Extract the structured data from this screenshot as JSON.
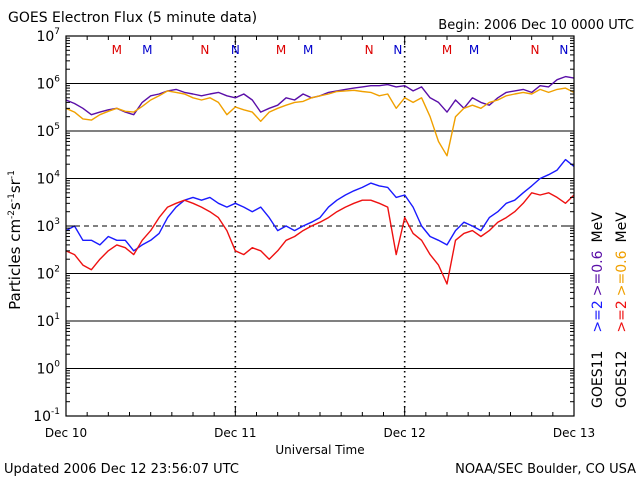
{
  "chart_data": {
    "type": "line",
    "title": "GOES Electron Flux (5 minute data)",
    "begin": "Begin: 2006 Dec 10 0000 UTC",
    "xlabel": "Universal Time",
    "ylabel_main": "Particles cm",
    "ylabel_sup1": "-2",
    "ylabel_mid1": "s",
    "ylabel_sup2": "-1",
    "ylabel_mid2": "sr",
    "ylabel_sup3": "-1",
    "y_scale": "log",
    "ylim": [
      0.1,
      10000000
    ],
    "y_ticks": [
      {
        "base": "10",
        "exp": "7",
        "value": 10000000
      },
      {
        "base": "10",
        "exp": "6",
        "value": 1000000
      },
      {
        "base": "10",
        "exp": "5",
        "value": 100000
      },
      {
        "base": "10",
        "exp": "4",
        "value": 10000
      },
      {
        "base": "10",
        "exp": "3",
        "value": 1000
      },
      {
        "base": "10",
        "exp": "2",
        "value": 100
      },
      {
        "base": "10",
        "exp": "1",
        "value": 10
      },
      {
        "base": "10",
        "exp": "0",
        "value": 1
      },
      {
        "base": "10",
        "exp": "-1",
        "value": 0.1
      }
    ],
    "xlim": [
      0,
      3
    ],
    "x_ticks": [
      {
        "label": "Dec 10",
        "day": 0
      },
      {
        "label": "Dec 11",
        "day": 1
      },
      {
        "label": "Dec 12",
        "day": 2
      },
      {
        "label": "Dec 13",
        "day": 3
      }
    ],
    "solid_gridlines": [
      1000000,
      100000,
      10000,
      100,
      10,
      1
    ],
    "dashed_gridlines": [
      1000
    ],
    "dashed_day_boundaries": [
      1,
      2
    ],
    "markers": [
      {
        "label": "M",
        "day": 0.3,
        "color": "#dd0000"
      },
      {
        "label": "M",
        "day": 0.48,
        "color": "#0000cc"
      },
      {
        "label": "N",
        "day": 0.82,
        "color": "#dd0000"
      },
      {
        "label": "N",
        "day": 1.0,
        "color": "#0000cc"
      },
      {
        "label": "M",
        "day": 1.27,
        "color": "#dd0000"
      },
      {
        "label": "M",
        "day": 1.43,
        "color": "#0000cc"
      },
      {
        "label": "N",
        "day": 1.79,
        "color": "#dd0000"
      },
      {
        "label": "N",
        "day": 1.96,
        "color": "#0000cc"
      },
      {
        "label": "M",
        "day": 2.25,
        "color": "#dd0000"
      },
      {
        "label": "M",
        "day": 2.41,
        "color": "#0000cc"
      },
      {
        "label": "N",
        "day": 2.77,
        "color": "#dd0000"
      },
      {
        "label": "N",
        "day": 2.94,
        "color": "#0000cc"
      }
    ],
    "legend": {
      "goes11": "GOES11",
      "goes12": "GOES12",
      "goes11_hi": ">=2",
      "goes11_lo": ">=0.6",
      "goes12_hi": ">=2",
      "goes12_lo": ">=0.6",
      "unit": "MeV"
    },
    "series": [
      {
        "color": "#5a0fa8",
        "x": [
          0,
          0.05,
          0.1,
          0.15,
          0.2,
          0.25,
          0.3,
          0.35,
          0.4,
          0.45,
          0.5,
          0.55,
          0.6,
          0.65,
          0.7,
          0.75,
          0.8,
          0.85,
          0.9,
          0.95,
          1.0,
          1.05,
          1.1,
          1.15,
          1.2,
          1.25,
          1.3,
          1.35,
          1.4,
          1.45,
          1.5,
          1.55,
          1.6,
          1.65,
          1.7,
          1.75,
          1.8,
          1.85,
          1.9,
          1.95,
          2.0,
          2.05,
          2.1,
          2.15,
          2.2,
          2.25,
          2.3,
          2.35,
          2.4,
          2.45,
          2.5,
          2.55,
          2.6,
          2.65,
          2.7,
          2.75,
          2.8,
          2.85,
          2.9,
          2.95,
          3.0
        ],
        "y": [
          450000,
          380000,
          300000,
          220000,
          250000,
          280000,
          300000,
          250000,
          220000,
          400000,
          550000,
          600000,
          700000,
          750000,
          650000,
          600000,
          550000,
          600000,
          650000,
          550000,
          500000,
          600000,
          450000,
          250000,
          300000,
          350000,
          500000,
          450000,
          600000,
          500000,
          550000,
          650000,
          700000,
          750000,
          800000,
          850000,
          900000,
          900000,
          950000,
          850000,
          900000,
          700000,
          850000,
          500000,
          400000,
          250000,
          450000,
          300000,
          500000,
          400000,
          350000,
          500000,
          650000,
          700000,
          750000,
          650000,
          900000,
          850000,
          1200000,
          1400000,
          1300000
        ]
      },
      {
        "color": "#f0a000",
        "x": [
          0,
          0.05,
          0.1,
          0.15,
          0.2,
          0.25,
          0.3,
          0.35,
          0.4,
          0.45,
          0.5,
          0.55,
          0.6,
          0.65,
          0.7,
          0.75,
          0.8,
          0.85,
          0.9,
          0.95,
          1.0,
          1.05,
          1.1,
          1.15,
          1.2,
          1.25,
          1.3,
          1.35,
          1.4,
          1.45,
          1.5,
          1.55,
          1.6,
          1.65,
          1.7,
          1.75,
          1.8,
          1.85,
          1.9,
          1.95,
          2.0,
          2.05,
          2.1,
          2.15,
          2.2,
          2.25,
          2.3,
          2.35,
          2.4,
          2.45,
          2.5,
          2.55,
          2.6,
          2.65,
          2.7,
          2.75,
          2.8,
          2.85,
          2.9,
          2.95,
          3.0
        ],
        "y": [
          300000,
          250000,
          180000,
          170000,
          220000,
          260000,
          300000,
          260000,
          250000,
          330000,
          450000,
          550000,
          700000,
          650000,
          600000,
          500000,
          450000,
          500000,
          400000,
          220000,
          320000,
          280000,
          250000,
          160000,
          250000,
          300000,
          350000,
          400000,
          420000,
          500000,
          550000,
          600000,
          680000,
          700000,
          720000,
          680000,
          650000,
          550000,
          600000,
          300000,
          500000,
          400000,
          500000,
          200000,
          60000,
          30000,
          200000,
          300000,
          350000,
          300000,
          400000,
          450000,
          550000,
          600000,
          650000,
          600000,
          750000,
          650000,
          750000,
          800000,
          650000
        ]
      },
      {
        "color": "#1a1aff",
        "x": [
          0,
          0.05,
          0.1,
          0.15,
          0.2,
          0.25,
          0.3,
          0.35,
          0.4,
          0.45,
          0.5,
          0.55,
          0.6,
          0.65,
          0.7,
          0.75,
          0.8,
          0.85,
          0.9,
          0.95,
          1.0,
          1.05,
          1.1,
          1.15,
          1.2,
          1.25,
          1.3,
          1.35,
          1.4,
          1.45,
          1.5,
          1.55,
          1.6,
          1.65,
          1.7,
          1.75,
          1.8,
          1.85,
          1.9,
          1.95,
          2.0,
          2.05,
          2.1,
          2.15,
          2.2,
          2.25,
          2.3,
          2.35,
          2.4,
          2.45,
          2.5,
          2.55,
          2.6,
          2.65,
          2.7,
          2.75,
          2.8,
          2.85,
          2.9,
          2.95,
          3.0
        ],
        "y": [
          800,
          1000,
          500,
          500,
          400,
          600,
          500,
          500,
          300,
          400,
          500,
          700,
          1500,
          2500,
          3500,
          4000,
          3500,
          4000,
          3000,
          2500,
          3000,
          2500,
          2000,
          2500,
          1500,
          800,
          1000,
          800,
          1000,
          1200,
          1500,
          2500,
          3500,
          4500,
          5500,
          6500,
          8000,
          7000,
          6500,
          4000,
          4500,
          2500,
          1000,
          600,
          500,
          400,
          800,
          1200,
          1000,
          800,
          1500,
          2000,
          3000,
          3500,
          5000,
          7000,
          10000,
          12000,
          15000,
          25000,
          18000
        ]
      },
      {
        "color": "#ee1111",
        "x": [
          0,
          0.05,
          0.1,
          0.15,
          0.2,
          0.25,
          0.3,
          0.35,
          0.4,
          0.45,
          0.5,
          0.55,
          0.6,
          0.65,
          0.7,
          0.75,
          0.8,
          0.85,
          0.9,
          0.95,
          1.0,
          1.05,
          1.1,
          1.15,
          1.2,
          1.25,
          1.3,
          1.35,
          1.4,
          1.45,
          1.5,
          1.55,
          1.6,
          1.65,
          1.7,
          1.75,
          1.8,
          1.85,
          1.9,
          1.95,
          2.0,
          2.05,
          2.1,
          2.15,
          2.2,
          2.25,
          2.3,
          2.35,
          2.4,
          2.45,
          2.5,
          2.55,
          2.6,
          2.65,
          2.7,
          2.75,
          2.8,
          2.85,
          2.9,
          2.95,
          3.0
        ],
        "y": [
          300,
          250,
          150,
          120,
          200,
          300,
          400,
          350,
          250,
          500,
          800,
          1500,
          2500,
          3000,
          3500,
          3000,
          2500,
          2000,
          1500,
          800,
          300,
          250,
          350,
          300,
          200,
          300,
          500,
          600,
          800,
          1000,
          1200,
          1500,
          2000,
          2500,
          3000,
          3500,
          3500,
          3000,
          2500,
          250,
          1500,
          700,
          500,
          250,
          150,
          60,
          500,
          700,
          800,
          600,
          800,
          1200,
          1500,
          2000,
          3000,
          5000,
          4500,
          5000,
          4000,
          3000,
          4500
        ]
      }
    ],
    "grid": "horizontal"
  },
  "footer": {
    "updated": "Updated 2006 Dec 12 23:56:07 UTC",
    "credit": "NOAA/SEC Boulder, CO USA"
  }
}
